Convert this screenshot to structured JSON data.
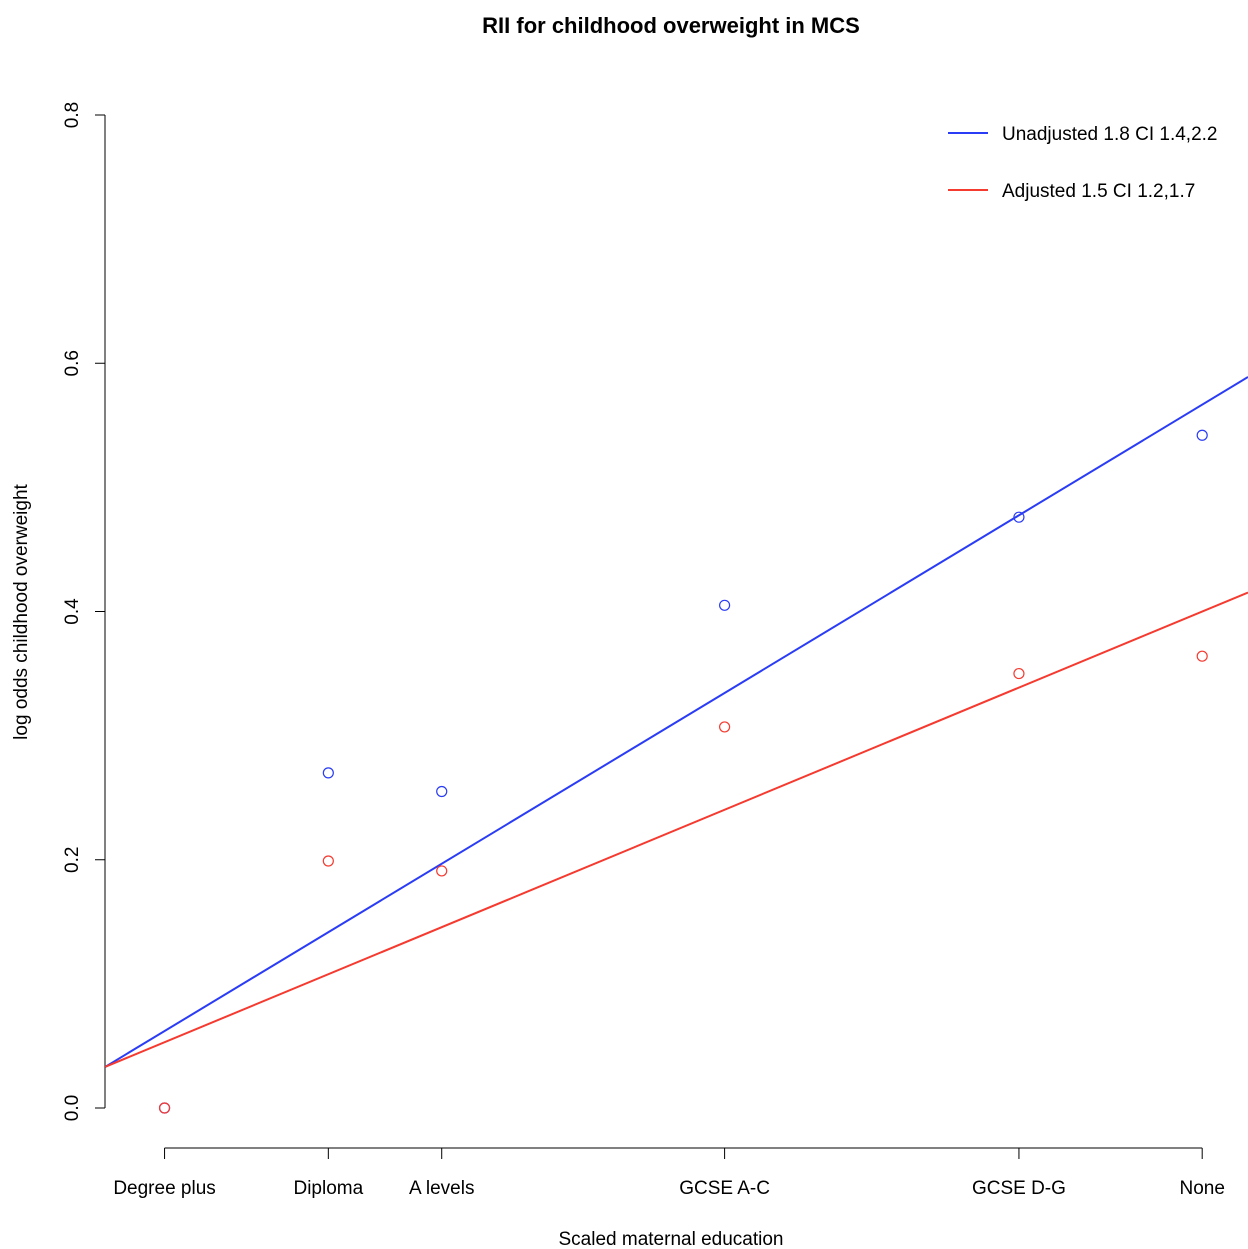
{
  "chart_data": {
    "type": "scatter",
    "title": "RII for childhood overweight in MCS",
    "xlabel": "Scaled maternal education",
    "ylabel": "log odds childhood overweight",
    "xlim": [
      -0.052,
      0.946
    ],
    "ylim": [
      0.0,
      0.8
    ],
    "x_ticks": [
      {
        "label": "Degree plus",
        "x": 0.0
      },
      {
        "label": "Diploma",
        "x": 0.143
      },
      {
        "label": "A levels",
        "x": 0.242
      },
      {
        "label": "GCSE A-C",
        "x": 0.489
      },
      {
        "label": "GCSE D-G",
        "x": 0.746
      },
      {
        "label": "None",
        "x": 0.906
      }
    ],
    "y_ticks": [
      "0.0",
      "0.2",
      "0.4",
      "0.6",
      "0.8"
    ],
    "grid": false,
    "legend_position": "top-right",
    "series": [
      {
        "name": "Unadjusted 1.8 CI 1.4,2.2",
        "color": "#2a3cf5",
        "points_y": [
          0.0,
          0.27,
          0.255,
          0.405,
          0.476,
          0.542
        ],
        "fit_line": {
          "intercept": 0.062,
          "slope": 0.557
        }
      },
      {
        "name": "Adjusted 1.5 CI 1.2,1.7",
        "color": "#f53a30",
        "points_y": [
          0.0,
          0.199,
          0.191,
          0.307,
          0.35,
          0.364
        ],
        "fit_line": {
          "intercept": 0.053,
          "slope": 0.383
        }
      }
    ]
  }
}
